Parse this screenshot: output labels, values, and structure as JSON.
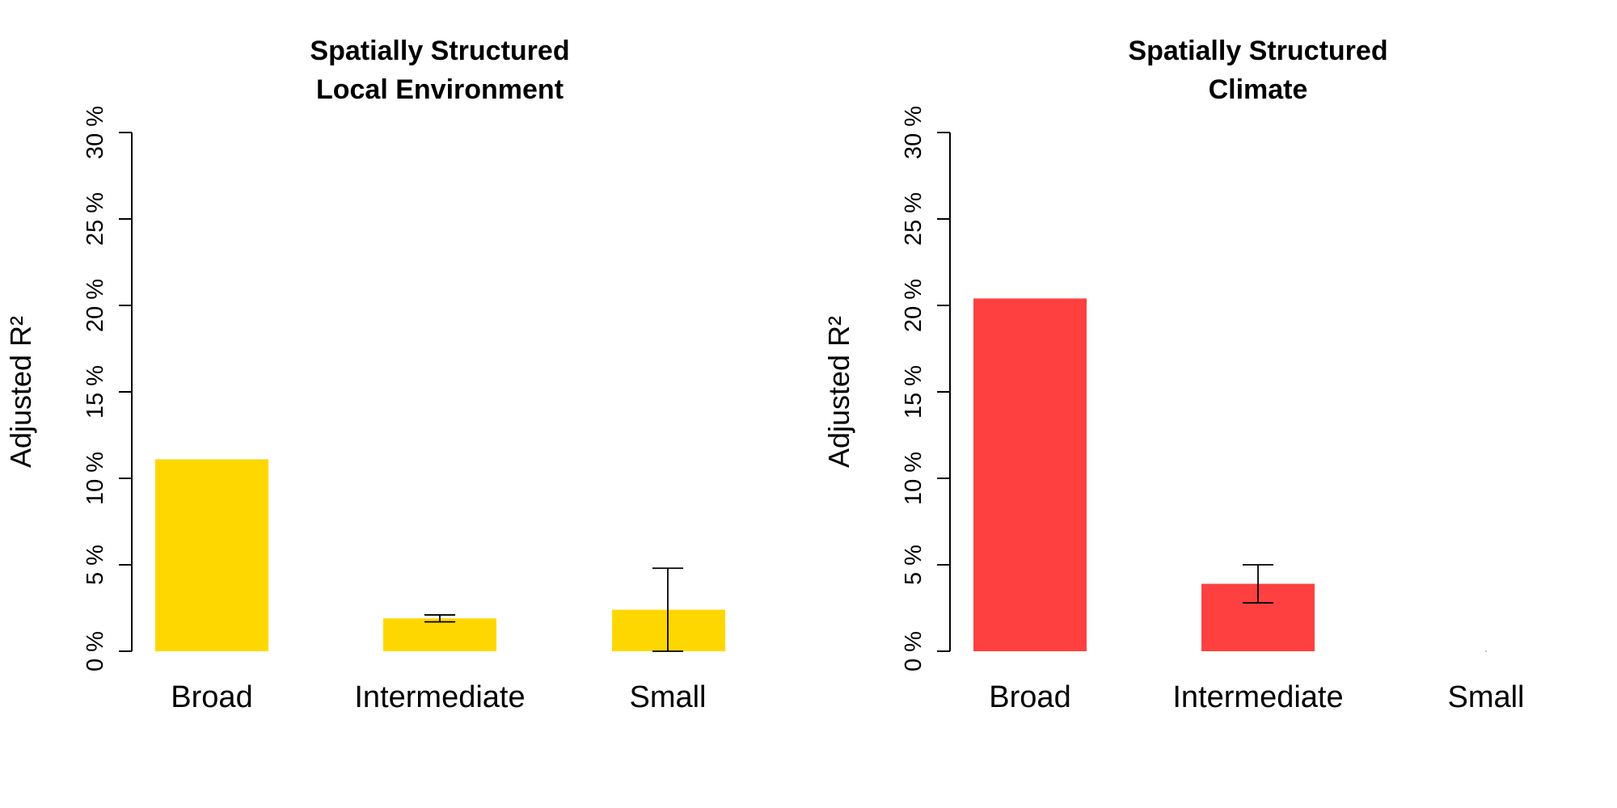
{
  "chart_data": [
    {
      "type": "bar",
      "title": [
        "Spatially Structured",
        "Local Environment"
      ],
      "ylabel": "Adjusted R²",
      "ylim": [
        0,
        30
      ],
      "yticks": [
        "0 %",
        "5 %",
        "10 %",
        "15 %",
        "20 %",
        "25 %",
        "30 %"
      ],
      "categories": [
        "Broad",
        "Intermediate",
        "Small"
      ],
      "values": [
        11.1,
        1.9,
        2.4
      ],
      "error_bars": [
        null,
        [
          1.7,
          2.1
        ],
        [
          0.0,
          4.8
        ]
      ],
      "color": "#FFD700",
      "grid": false,
      "legend": "none"
    },
    {
      "type": "bar",
      "title": [
        "Spatially Structured",
        "Climate"
      ],
      "ylabel": "Adjusted R²",
      "ylim": [
        0,
        30
      ],
      "yticks": [
        "0 %",
        "5 %",
        "10 %",
        "15 %",
        "20 %",
        "25 %",
        "30 %"
      ],
      "categories": [
        "Broad",
        "Intermediate",
        "Small"
      ],
      "values": [
        20.4,
        3.9,
        0.0
      ],
      "error_bars": [
        null,
        [
          2.8,
          5.0
        ],
        null
      ],
      "color": "#FF4040",
      "grid": false,
      "legend": "none"
    }
  ]
}
